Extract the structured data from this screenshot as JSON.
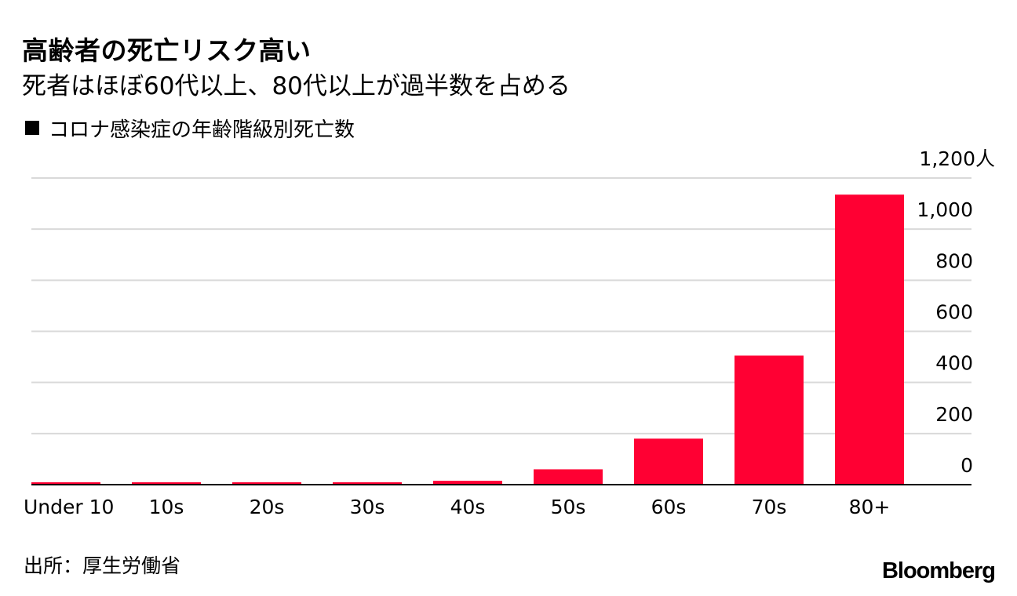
{
  "title": "高齢者の死亡リスク高い",
  "subtitle": "死者はほぼ60代以上、80代以上が過半数を占める",
  "legend_label": "コロナ感染症の年齢階級別死亡数",
  "source": "出所：厚生労働省",
  "logo": "Bloomberg",
  "colors": {
    "bar": "#ff0033",
    "grid": "#d9d9d9",
    "axis": "#000000",
    "legend_swatch": "#000000"
  },
  "chart_data": {
    "type": "bar",
    "categories": [
      "Under 10",
      "10s",
      "20s",
      "30s",
      "40s",
      "50s",
      "60s",
      "70s",
      "80+"
    ],
    "series": [
      {
        "name": "コロナ感染症の年齢階級別死亡数",
        "values": [
          0,
          0,
          0,
          2,
          15,
          60,
          180,
          505,
          1135
        ]
      }
    ],
    "ylim": [
      0,
      1200
    ],
    "yticks": [
      0,
      200,
      400,
      600,
      800,
      1000,
      1200
    ],
    "ytick_labels": [
      "0",
      "200",
      "400",
      "600",
      "800",
      "1,000",
      "1,200人"
    ],
    "yaxis_position": "right",
    "grid": true,
    "legend_position": "top-left"
  }
}
